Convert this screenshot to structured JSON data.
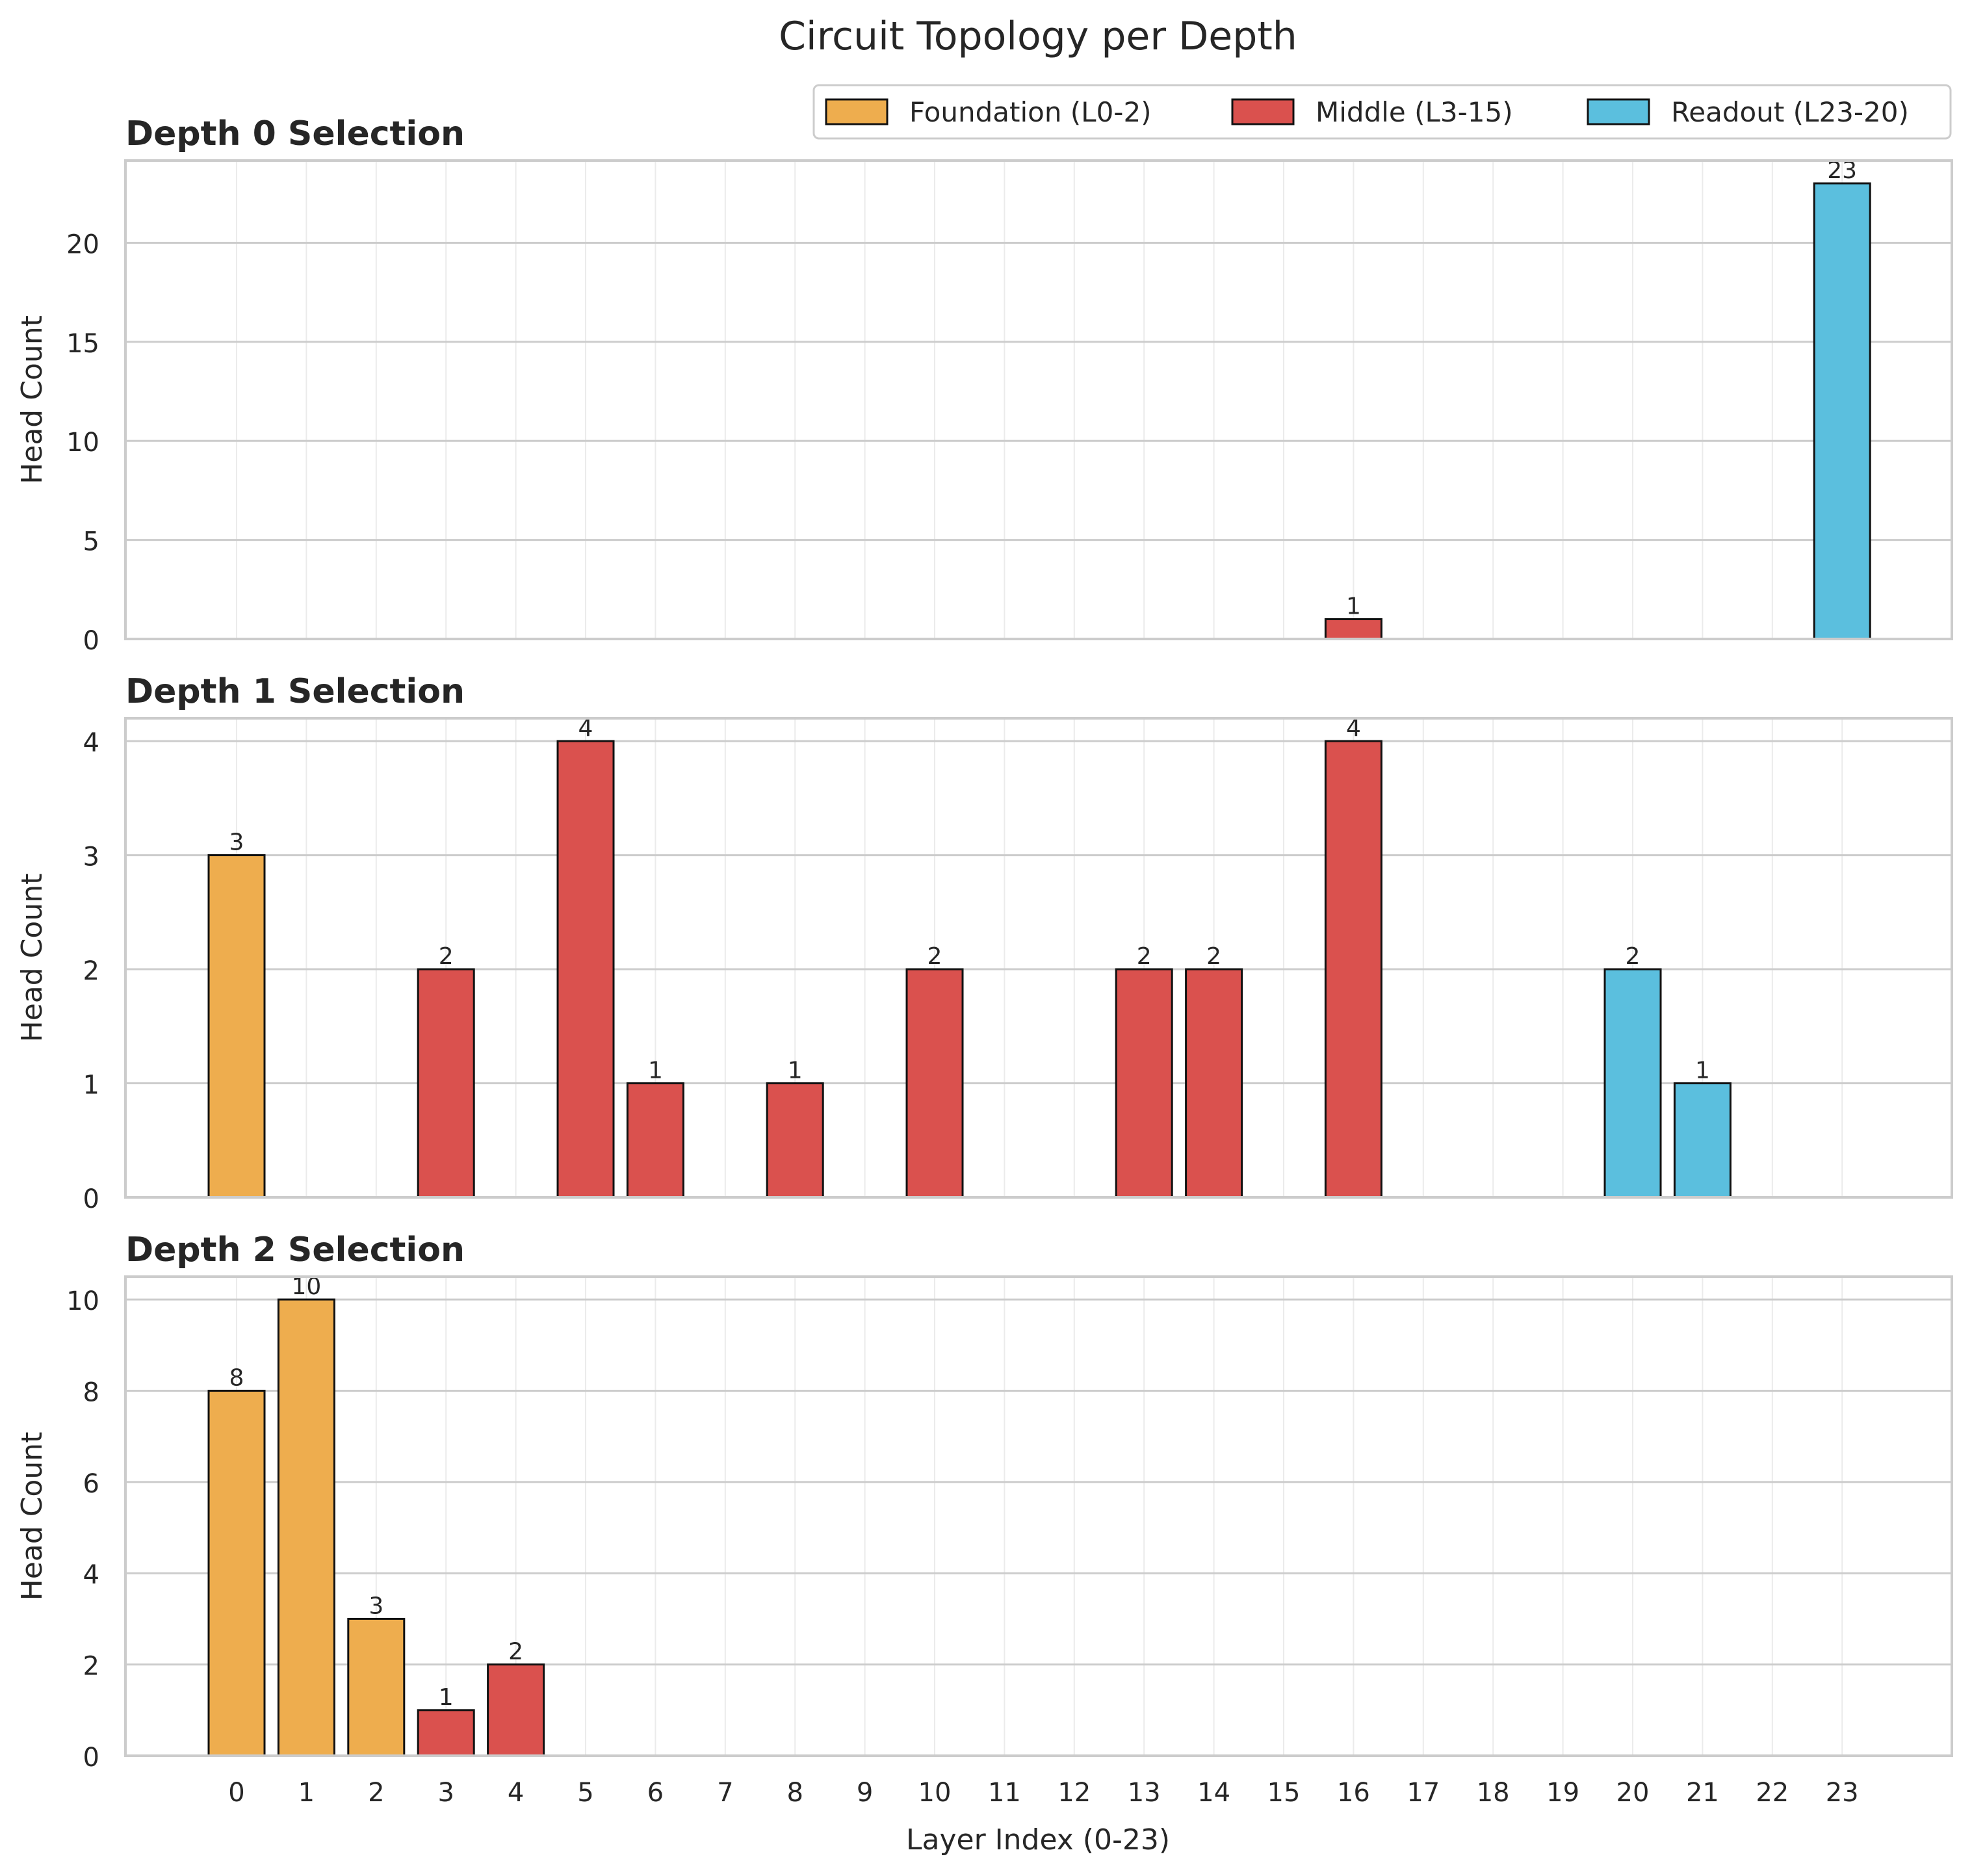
{
  "chart_data": {
    "type": "bar",
    "title": "Circuit Topology per Depth",
    "xlabel": "Layer Index (0-23)",
    "ylabel": "Head Count",
    "x_ticks": [
      "0",
      "1",
      "2",
      "3",
      "4",
      "5",
      "6",
      "7",
      "8",
      "9",
      "10",
      "11",
      "12",
      "13",
      "14",
      "15",
      "16",
      "17",
      "18",
      "19",
      "20",
      "21",
      "22",
      "23"
    ],
    "legend": {
      "placement": "top-right",
      "entries": [
        {
          "key": "foundation",
          "label": "Foundation (L0-2)",
          "color": "#EEAD4E"
        },
        {
          "key": "middle",
          "label": "Middle (L3-15)",
          "color": "#DA514E"
        },
        {
          "key": "readout",
          "label": "Readout (L23-20)",
          "color": "#5BBFDE"
        }
      ]
    },
    "panels": [
      {
        "title": "Depth 0 Selection",
        "ylim": [
          0,
          24.15
        ],
        "y_ticks": [
          0,
          5,
          10,
          15,
          20
        ],
        "bars": [
          {
            "layer": 16,
            "value": 1,
            "group": "middle",
            "label": "1"
          },
          {
            "layer": 23,
            "value": 23,
            "group": "readout",
            "label": "23"
          }
        ]
      },
      {
        "title": "Depth 1 Selection",
        "ylim": [
          0,
          4.2
        ],
        "y_ticks": [
          0,
          1,
          2,
          3,
          4
        ],
        "bars": [
          {
            "layer": 0,
            "value": 3,
            "group": "foundation",
            "label": "3"
          },
          {
            "layer": 3,
            "value": 2,
            "group": "middle",
            "label": "2"
          },
          {
            "layer": 5,
            "value": 4,
            "group": "middle",
            "label": "4"
          },
          {
            "layer": 6,
            "value": 1,
            "group": "middle",
            "label": "1"
          },
          {
            "layer": 8,
            "value": 1,
            "group": "middle",
            "label": "1"
          },
          {
            "layer": 10,
            "value": 2,
            "group": "middle",
            "label": "2"
          },
          {
            "layer": 13,
            "value": 2,
            "group": "middle",
            "label": "2"
          },
          {
            "layer": 14,
            "value": 2,
            "group": "middle",
            "label": "2"
          },
          {
            "layer": 16,
            "value": 4,
            "group": "middle",
            "label": "4"
          },
          {
            "layer": 20,
            "value": 2,
            "group": "readout",
            "label": "2"
          },
          {
            "layer": 21,
            "value": 1,
            "group": "readout",
            "label": "1"
          }
        ]
      },
      {
        "title": "Depth 2 Selection",
        "ylim": [
          0,
          10.5
        ],
        "y_ticks": [
          0,
          2,
          4,
          6,
          8,
          10
        ],
        "bars": [
          {
            "layer": 0,
            "value": 8,
            "group": "foundation",
            "label": "8"
          },
          {
            "layer": 1,
            "value": 10,
            "group": "foundation",
            "label": "10"
          },
          {
            "layer": 2,
            "value": 3,
            "group": "foundation",
            "label": "3"
          },
          {
            "layer": 3,
            "value": 1,
            "group": "middle",
            "label": "1"
          },
          {
            "layer": 4,
            "value": 2,
            "group": "middle",
            "label": "2"
          }
        ]
      }
    ]
  }
}
